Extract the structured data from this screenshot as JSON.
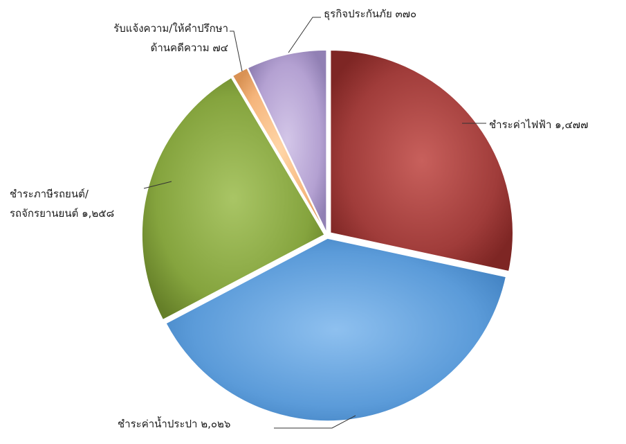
{
  "chart_data": {
    "type": "pie",
    "title": "",
    "slices": [
      {
        "label_lines": [
          "ชำระค่าไฟฟ้า ๑,๔๗๗"
        ],
        "value": 1477,
        "color": "#a03c3a",
        "gradient_light": "#c8605c",
        "gradient_dark": "#7e2624"
      },
      {
        "label_lines": [
          "ชำระค่าน้ำประปา ๒,๐๒๖"
        ],
        "value": 2026,
        "color": "#5b9bd9",
        "gradient_light": "#8ec0ef",
        "gradient_dark": "#3f7fbf"
      },
      {
        "label_lines": [
          "ชำระภาษีรถยนต์/",
          "รถจักรยานยนต์ ๑,๒๕๘"
        ],
        "value": 1258,
        "color": "#85a43e",
        "gradient_light": "#a9c565",
        "gradient_dark": "#657f28"
      },
      {
        "label_lines": [
          "รับแจ้งความ/ให้คำปรึกษา",
          "ด้านคดีความ ๗๔"
        ],
        "value": 74,
        "color": "#f5b57c",
        "gradient_light": "#ffd6a8",
        "gradient_dark": "#d99254"
      },
      {
        "label_lines": [
          "ธุรกิจประกันภัย ๓๗๐"
        ],
        "value": 370,
        "color": "#b4a1d2",
        "gradient_light": "#d3c6e8",
        "gradient_dark": "#9180b4"
      }
    ],
    "legend": "none"
  }
}
